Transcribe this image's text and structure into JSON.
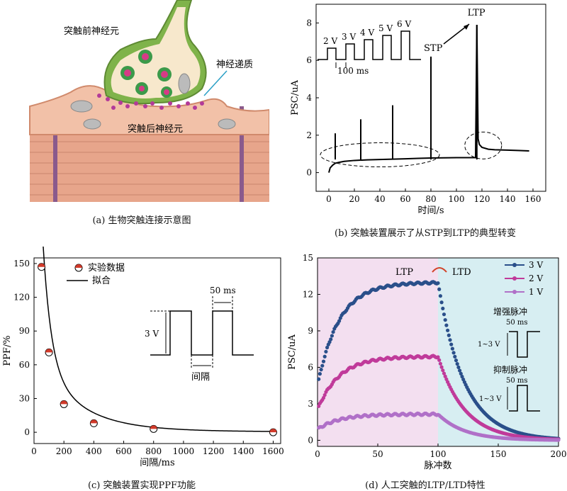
{
  "panel_a": {
    "pre": "突触前神经元",
    "nt": "神经递质",
    "post": "突触后神经元",
    "caption": "(a) 生物突触连接示意图"
  },
  "panel_b": {
    "caption": "(b) 突触装置展示了从STP到LTP的典型转变",
    "pulse_labels": [
      "2 V",
      "3 V",
      "4 V",
      "5 V",
      "6 V"
    ],
    "interval": "100 ms",
    "stp": "STP",
    "ltp": "LTP"
  },
  "panel_c": {
    "caption": "(c) 突触装置实现PPF功能",
    "legend_data": "实验数据",
    "legend_fit": "拟合",
    "width_label": "50 ms",
    "amp_label": "3 V",
    "gap_label": "间隔"
  },
  "panel_d": {
    "caption": "(d) 人工突触的LTP/LTD特性",
    "ltp": "LTP",
    "ltd": "LTD",
    "inset1_title": "增强脉冲",
    "inset1_width": "50 ms",
    "inset1_amp": "1~3 V",
    "inset2_title": "抑制脉冲",
    "inset2_width": "50 ms",
    "inset2_amp": "1~3 V"
  },
  "chart_data": [
    {
      "type": "line",
      "panel": "b",
      "xlabel": "时间/s",
      "ylabel": "PSC/uA",
      "xlim": [
        -10,
        170
      ],
      "ylim": [
        -1,
        9
      ],
      "xticks": [
        0,
        20,
        40,
        60,
        80,
        100,
        120,
        140,
        160
      ],
      "yticks": [
        0,
        2,
        4,
        6,
        8
      ],
      "series": [
        {
          "x": [
            0,
            1,
            3,
            5,
            8,
            12,
            20,
            30,
            40,
            50,
            60,
            70,
            80,
            90,
            100,
            110,
            115,
            116,
            117,
            118,
            120,
            125,
            130,
            140,
            150,
            157
          ],
          "values": [
            0,
            0.25,
            0.4,
            0.5,
            0.55,
            0.6,
            0.65,
            0.68,
            0.7,
            0.72,
            0.74,
            0.76,
            0.78,
            0.79,
            0.8,
            0.8,
            0.8,
            7.9,
            1.8,
            1.5,
            1.35,
            1.25,
            1.22,
            1.2,
            1.18,
            1.16
          ]
        }
      ],
      "spikes": [
        {
          "x": 5,
          "y": 2.1
        },
        {
          "x": 25,
          "y": 2.85
        },
        {
          "x": 50,
          "y": 3.6
        },
        {
          "x": 80,
          "y": 6.2
        },
        {
          "x": 116,
          "y": 7.9
        }
      ]
    },
    {
      "type": "scatter",
      "panel": "c",
      "xlabel": "间隔/ms",
      "ylabel": "PPF/%",
      "xlim": [
        0,
        1650
      ],
      "ylim": [
        -10,
        155
      ],
      "xticks": [
        0,
        200,
        400,
        600,
        800,
        1000,
        1200,
        1400,
        1600
      ],
      "yticks": [
        0,
        30,
        60,
        90,
        120,
        150
      ],
      "series": [
        {
          "name": "实验数据",
          "x": [
            50,
            100,
            200,
            400,
            800,
            1600
          ],
          "values": [
            147,
            71,
            25,
            8,
            3,
            0
          ]
        }
      ]
    },
    {
      "type": "scatter",
      "panel": "d",
      "xlabel": "脉冲数",
      "ylabel": "PSC/uA",
      "xlim": [
        0,
        200
      ],
      "ylim": [
        -0.5,
        15
      ],
      "xticks": [
        0,
        50,
        100,
        150,
        200
      ],
      "yticks": [
        0,
        3,
        6,
        9,
        12,
        15
      ],
      "series": [
        {
          "name": "3 V",
          "color": "#2a4f8a",
          "ltp_max": 13.0,
          "ltp_start": 4.5
        },
        {
          "name": "2 V",
          "color": "#c03a9a",
          "ltp_max": 6.9,
          "ltp_start": 2.5
        },
        {
          "name": "1 V",
          "color": "#b070c8",
          "ltp_max": 2.15,
          "ltp_start": 0.9
        }
      ]
    }
  ]
}
